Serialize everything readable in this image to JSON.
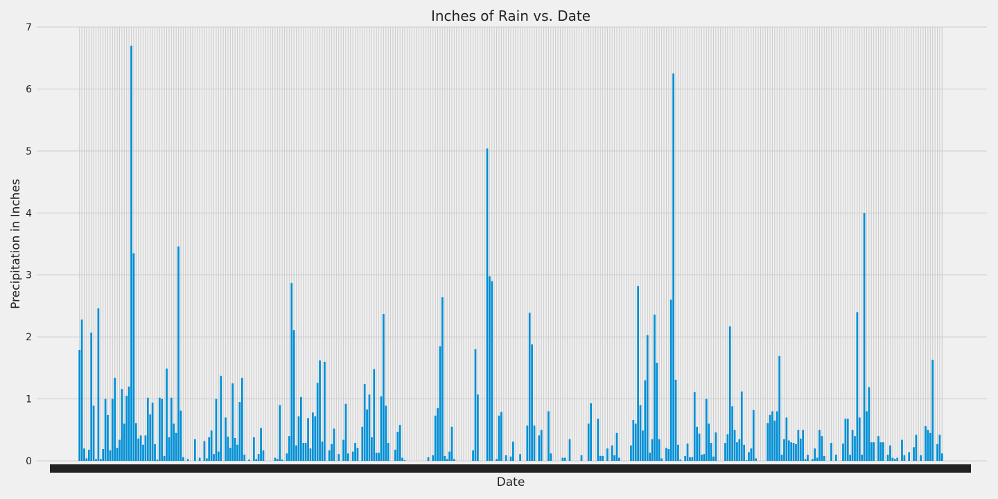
{
  "chart_data": {
    "type": "bar",
    "title": "Inches of Rain vs. Date",
    "xlabel": "Date",
    "ylabel": "Precipitation in Inches",
    "ylim": [
      0,
      7
    ],
    "yticks": [
      0,
      1,
      2,
      3,
      4,
      5,
      6,
      7
    ],
    "grid": true,
    "bar_color": "#008fd5",
    "background": "#f0f0f0",
    "series": [
      {
        "values": [
          1.79,
          2.28,
          0.2,
          0.04,
          0.18,
          2.07,
          0.89,
          0.03,
          2.46,
          0.03,
          0.19,
          1.0,
          0.74,
          0.17,
          1.0,
          1.34,
          0.21,
          0.34,
          1.16,
          0.6,
          1.05,
          1.2,
          6.7,
          3.35,
          0.61,
          0.36,
          0.41,
          0.26,
          0.41,
          1.02,
          0.75,
          0.94,
          0.27,
          0.02,
          1.02,
          1.0,
          0.08,
          1.49,
          0.38,
          1.02,
          0.6,
          0.45,
          3.46,
          0.81,
          0.06,
          0.0,
          0.03,
          0.0,
          0.0,
          0.35,
          0.0,
          0.05,
          0.0,
          0.32,
          0.04,
          0.38,
          0.49,
          0.11,
          1.0,
          0.15,
          1.37,
          0.0,
          0.7,
          0.39,
          0.21,
          1.25,
          0.37,
          0.26,
          0.95,
          1.34,
          0.1,
          0.0,
          0.02,
          0.0,
          0.38,
          0.03,
          0.11,
          0.53,
          0.17,
          0.0,
          0.0,
          0.0,
          0.0,
          0.05,
          0.03,
          0.9,
          0.02,
          0.0,
          0.12,
          0.4,
          2.87,
          2.11,
          0.25,
          0.72,
          1.03,
          0.29,
          0.29,
          0.69,
          0.2,
          0.78,
          0.72,
          1.26,
          1.62,
          0.31,
          1.6,
          0.0,
          0.17,
          0.27,
          0.52,
          0.0,
          0.11,
          0.0,
          0.34,
          0.92,
          0.12,
          0.0,
          0.15,
          0.29,
          0.21,
          0.0,
          0.55,
          1.24,
          0.83,
          1.07,
          0.38,
          1.48,
          0.13,
          0.13,
          1.04,
          2.37,
          0.89,
          0.29,
          0.0,
          0.0,
          0.18,
          0.47,
          0.58,
          0.05,
          0.01,
          0.0,
          0.0,
          0.0,
          0.0,
          0.0,
          0.0,
          0.0,
          0.0,
          0.0,
          0.06,
          0.0,
          0.09,
          0.73,
          0.85,
          1.85,
          2.64,
          0.08,
          0.03,
          0.15,
          0.55,
          0.03,
          0.0,
          0.0,
          0.0,
          0.0,
          0.0,
          0.0,
          0.0,
          0.17,
          1.8,
          1.07,
          0.0,
          0.0,
          0.0,
          5.04,
          2.98,
          2.9,
          0.0,
          0.03,
          0.73,
          0.79,
          0.0,
          0.09,
          0.0,
          0.07,
          0.31,
          0.0,
          0.0,
          0.11,
          0.0,
          0.0,
          0.57,
          2.39,
          1.88,
          0.57,
          0.0,
          0.41,
          0.5,
          0.0,
          0.0,
          0.8,
          0.12,
          0.0,
          0.0,
          0.0,
          0.0,
          0.05,
          0.05,
          0.0,
          0.35,
          0.0,
          0.0,
          0.0,
          0.0,
          0.09,
          0.0,
          0.0,
          0.6,
          0.93,
          0.0,
          0.0,
          0.68,
          0.08,
          0.08,
          0.0,
          0.2,
          0.0,
          0.25,
          0.09,
          0.45,
          0.05,
          0.0,
          0.0,
          0.0,
          0.0,
          0.25,
          0.66,
          0.6,
          2.82,
          0.9,
          0.49,
          1.3,
          2.03,
          0.13,
          0.35,
          2.36,
          1.58,
          0.35,
          0.04,
          0.0,
          0.21,
          0.19,
          2.6,
          6.25,
          1.31,
          0.26,
          0.02,
          0.0,
          0.08,
          0.28,
          0.06,
          0.06,
          1.11,
          0.55,
          0.44,
          0.1,
          0.11,
          1.0,
          0.6,
          0.29,
          0.07,
          0.46,
          0.0,
          0.0,
          0.0,
          0.29,
          0.43,
          2.17,
          0.88,
          0.5,
          0.3,
          0.35,
          1.12,
          0.26,
          0.01,
          0.14,
          0.2,
          0.82,
          0.04,
          0.0,
          0.0,
          0.0,
          0.0,
          0.61,
          0.74,
          0.8,
          0.65,
          0.8,
          1.69,
          0.1,
          0.35,
          0.7,
          0.33,
          0.3,
          0.29,
          0.27,
          0.5,
          0.36,
          0.5,
          0.03,
          0.1,
          0.0,
          0.03,
          0.2,
          0.05,
          0.5,
          0.4,
          0.08,
          0.0,
          0.0,
          0.29,
          0.0,
          0.1,
          0.0,
          0.0,
          0.28,
          0.68,
          0.68,
          0.1,
          0.5,
          0.4,
          2.4,
          0.7,
          0.1,
          4.0,
          0.8,
          1.19,
          0.3,
          0.3,
          0.0,
          0.4,
          0.3,
          0.3,
          0.0,
          0.1,
          0.25,
          0.05,
          0.03,
          0.05,
          0.0,
          0.34,
          0.09,
          0.0,
          0.14,
          0.0,
          0.22,
          0.42,
          0.0,
          0.09,
          0.0,
          0.56,
          0.5,
          0.45,
          1.63,
          0.0,
          0.27,
          0.42,
          0.12
        ]
      }
    ]
  }
}
